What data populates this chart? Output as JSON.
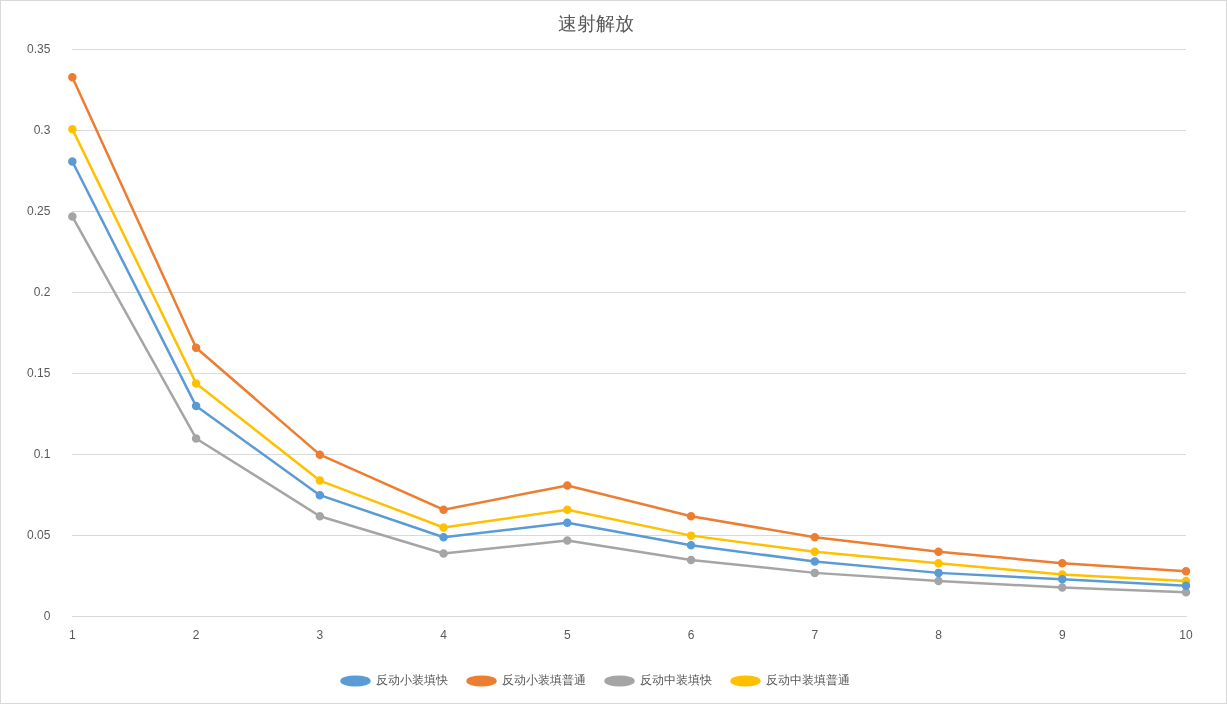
{
  "chart_data": {
    "type": "line",
    "title": "速射解放",
    "categories": [
      "1",
      "2",
      "3",
      "4",
      "5",
      "6",
      "7",
      "8",
      "9",
      "10"
    ],
    "series": [
      {
        "name": "反动小装填快",
        "color": "#5b9bd5",
        "values": [
          0.281,
          0.13,
          0.075,
          0.049,
          0.058,
          0.044,
          0.034,
          0.027,
          0.023,
          0.019
        ]
      },
      {
        "name": "反动小装填普通",
        "color": "#ed7d31",
        "values": [
          0.333,
          0.166,
          0.1,
          0.066,
          0.081,
          0.062,
          0.049,
          0.04,
          0.033,
          0.028
        ]
      },
      {
        "name": "反动中装填快",
        "color": "#a5a5a5",
        "values": [
          0.247,
          0.11,
          0.062,
          0.039,
          0.047,
          0.035,
          0.027,
          0.022,
          0.018,
          0.015
        ]
      },
      {
        "name": "反动中装填普通",
        "color": "#ffc000",
        "values": [
          0.301,
          0.144,
          0.084,
          0.055,
          0.066,
          0.05,
          0.04,
          0.033,
          0.026,
          0.022
        ]
      }
    ],
    "ylim": [
      0,
      0.35
    ],
    "yticks": [
      0,
      0.05,
      0.1,
      0.15,
      0.2,
      0.25,
      0.3,
      0.35
    ],
    "grid": "y",
    "legend": "bottom",
    "marker": "circle",
    "line_style": "solid"
  }
}
